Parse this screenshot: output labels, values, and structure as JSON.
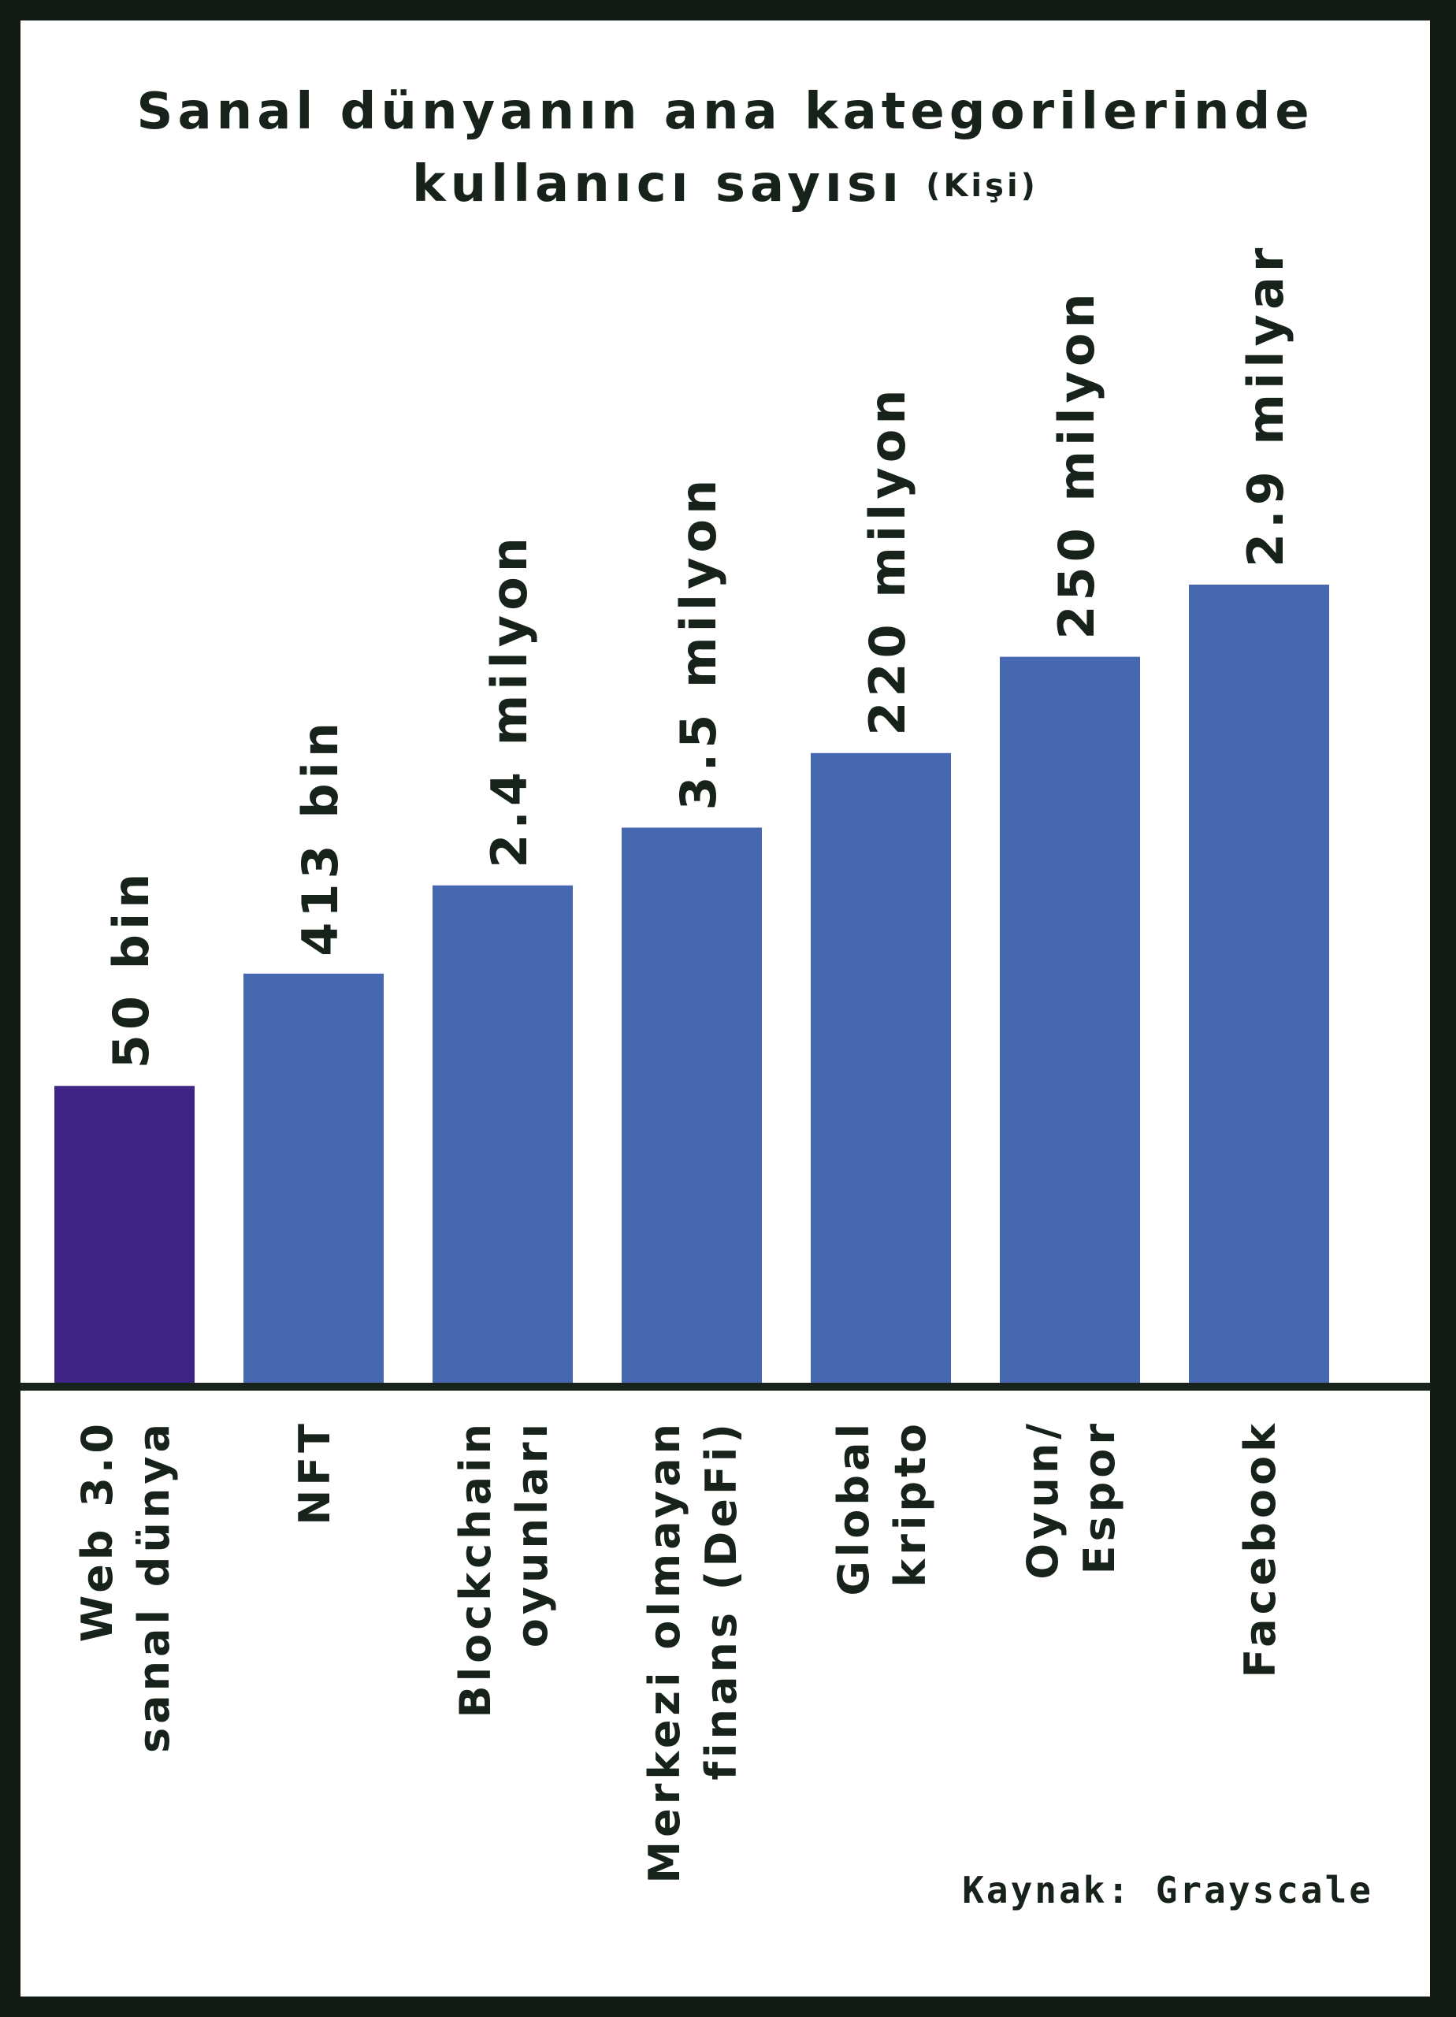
{
  "chart_data": {
    "type": "bar",
    "title_line1": "Sanal dünyanın ana kategorilerinde",
    "title_line2": "kullanıcı sayısı",
    "title_unit": "(Kişi)",
    "categories": [
      [
        "Web 3.0",
        "sanal dünya"
      ],
      [
        "NFT"
      ],
      [
        "Blockchain",
        "oyunları"
      ],
      [
        "Merkezi olmayan",
        "finans (DeFi)"
      ],
      [
        "Global",
        "kripto"
      ],
      [
        "Oyun/",
        "Espor"
      ],
      [
        "Facebook"
      ]
    ],
    "data_labels": [
      "50 bin",
      "413 bin",
      "2.4 milyon",
      "3.5 milyon",
      "220 milyon",
      "250 milyon",
      "2.9 milyar"
    ],
    "values": [
      50000,
      413000,
      2400000,
      3500000,
      220000000,
      250000000,
      2900000000
    ],
    "bar_level": [
      0.375,
      0.515,
      0.625,
      0.697,
      0.79,
      0.91,
      1.0
    ],
    "colors": {
      "highlight": "#3e2484",
      "bar": "#4767b0",
      "text": "#17221a",
      "axis": "#17221a"
    },
    "grid": false,
    "legend": "none",
    "source": "Kaynak: Grayscale"
  }
}
